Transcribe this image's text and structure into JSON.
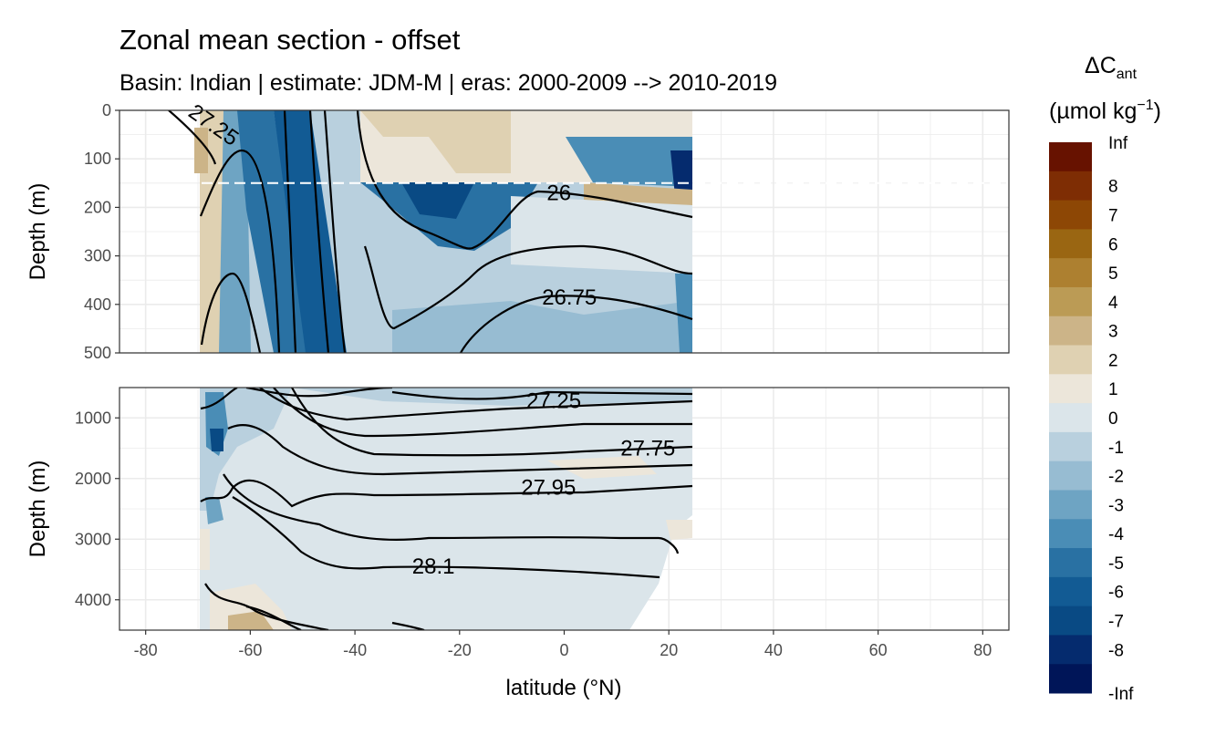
{
  "title": "Zonal mean section - offset",
  "subtitle": "Basin: Indian | estimate: JDM-M | eras: 2000-2009 --> 2010-2019",
  "chart_data": {
    "type": "heatmap",
    "title": "Zonal mean section - offset",
    "subtitle": "Basin: Indian | estimate: JDM-M | eras: 2000-2009 --> 2010-2019",
    "xlabel": "latitude (°N)",
    "ylabel": "Depth (m)",
    "x_ticks": [
      -80,
      -60,
      -40,
      -20,
      0,
      20,
      40,
      60,
      80
    ],
    "xlim": [
      -85,
      85
    ],
    "grid": true,
    "legend_position": "right",
    "legend": {
      "title_main": "ΔC",
      "title_sub": "ant",
      "units_main": "(µmol kg",
      "units_sup": "−1",
      "units_end": ")",
      "levels": [
        "Inf",
        "8",
        "7",
        "6",
        "5",
        "4",
        "3",
        "2",
        "1",
        "0",
        "-1",
        "-2",
        "-3",
        "-4",
        "-5",
        "-6",
        "-7",
        "-8",
        "-Inf"
      ],
      "colors": [
        "#671200",
        "#7e2d04",
        "#8d4705",
        "#9a6612",
        "#ad8030",
        "#bb9b55",
        "#ccb488",
        "#dfd1b2",
        "#ece6da",
        "#dbe5ea",
        "#b9d0de",
        "#97bcd2",
        "#6ea4c3",
        "#4a8db6",
        "#2971a3",
        "#125b94",
        "#094a84",
        "#052b6e",
        "#001558"
      ]
    },
    "panels": [
      {
        "name": "upper",
        "ylim": [
          0,
          500
        ],
        "y_ticks": [
          0,
          100,
          200,
          300,
          400,
          500
        ],
        "reference_line_depth": 150
      },
      {
        "name": "lower",
        "ylim": [
          500,
          4500
        ],
        "y_ticks": [
          1000,
          2000,
          3000,
          4000
        ]
      }
    ],
    "isopycnal_labels": [
      {
        "panel": "upper",
        "text": "27.25",
        "lat": -67,
        "depth": 30
      },
      {
        "panel": "upper",
        "text": "26",
        "lat": -1,
        "depth": 170
      },
      {
        "panel": "upper",
        "text": "26.75",
        "lat": 1,
        "depth": 385
      },
      {
        "panel": "lower",
        "text": "27.25",
        "lat": -2,
        "depth": 720
      },
      {
        "panel": "lower",
        "text": "27.75",
        "lat": 16,
        "depth": 1500
      },
      {
        "panel": "lower",
        "text": "27.95",
        "lat": -3,
        "depth": 2150
      },
      {
        "panel": "lower",
        "text": "28.1",
        "lat": -25,
        "depth": 3450
      }
    ],
    "data_extent_lat": [
      -70,
      24.5
    ]
  }
}
